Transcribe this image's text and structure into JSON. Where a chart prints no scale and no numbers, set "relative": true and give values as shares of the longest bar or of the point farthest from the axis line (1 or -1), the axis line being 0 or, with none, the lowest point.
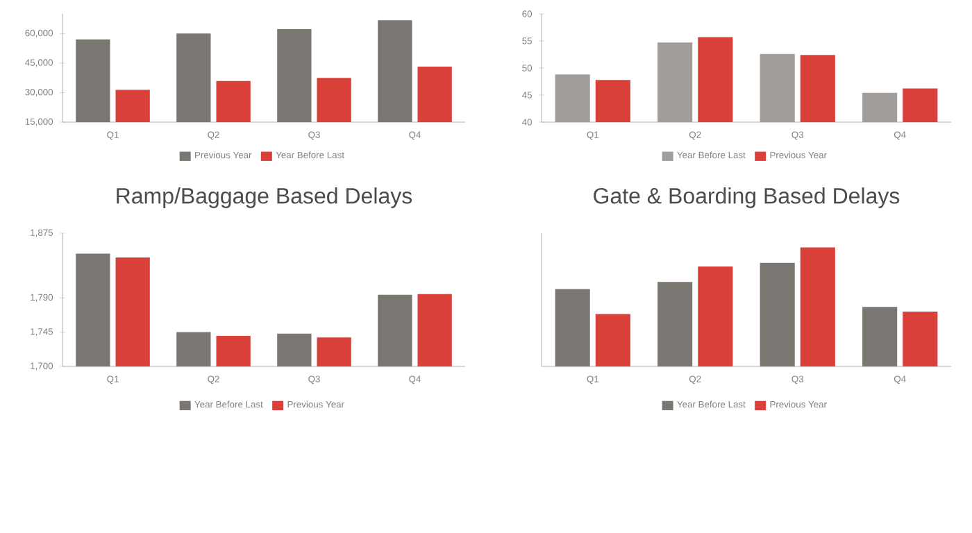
{
  "chart_data": [
    {
      "type": "bar",
      "categories": [
        "Q1",
        "Q2",
        "Q3",
        "Q4"
      ],
      "legend": "bottom",
      "ylim": [
        15000,
        70000
      ],
      "yticks": [
        {
          "value": 15000,
          "label": "15,000"
        },
        {
          "value": 30000,
          "label": "30,000"
        },
        {
          "value": 45000,
          "label": "45,000"
        },
        {
          "value": 60000,
          "label": "60,000"
        }
      ],
      "series": [
        {
          "name": "Previous Year",
          "color": "#7a7672",
          "values": [
            57000,
            60000,
            62200,
            66700
          ]
        },
        {
          "name": "Year Before Last",
          "color": "#d9403a",
          "values": [
            31400,
            35900,
            37500,
            43200
          ]
        }
      ]
    },
    {
      "type": "bar",
      "categories": [
        "Q1",
        "Q2",
        "Q3",
        "Q4"
      ],
      "legend": "bottom",
      "ylim": [
        40,
        60
      ],
      "yticks": [
        40,
        45,
        50,
        55,
        60
      ],
      "series": [
        {
          "name": "Year Before Last",
          "color": "#a09d9a",
          "values": [
            48.8,
            54.7,
            52.6,
            45.4
          ]
        },
        {
          "name": "Previous Year",
          "color": "#d9403a",
          "values": [
            47.8,
            55.7,
            52.4,
            46.2
          ]
        }
      ]
    },
    {
      "type": "bar",
      "title": "Ramp/Baggage Based Delays",
      "categories": [
        "Q1",
        "Q2",
        "Q3",
        "Q4"
      ],
      "legend": "bottom",
      "ylim": [
        1700,
        1875
      ],
      "yticks": [
        {
          "value": 1700,
          "label": "1,700"
        },
        {
          "value": 1745,
          "label": "1,745"
        },
        {
          "value": 1790,
          "label": "1,790"
        },
        {
          "value": 1875,
          "label": "1,875"
        }
      ],
      "series": [
        {
          "name": "Year Before Last",
          "color": "#7a7672",
          "values": [
            1848,
            1745,
            1743,
            1794
          ]
        },
        {
          "name": "Previous Year",
          "color": "#d9403a",
          "values": [
            1843,
            1740,
            1738,
            1795
          ]
        }
      ]
    },
    {
      "type": "bar",
      "title": "Gate & Boarding Based Delays",
      "categories": [
        "Q1",
        "Q2",
        "Q3",
        "Q4"
      ],
      "legend": "bottom",
      "relative": true,
      "series": [
        {
          "name": "Year Before Last",
          "color": "#7a7672",
          "values": [
            0.65,
            0.71,
            0.87,
            0.5
          ]
        },
        {
          "name": "Previous Year",
          "color": "#d9403a",
          "values": [
            0.44,
            0.84,
            1,
            0.46
          ]
        }
      ]
    }
  ]
}
